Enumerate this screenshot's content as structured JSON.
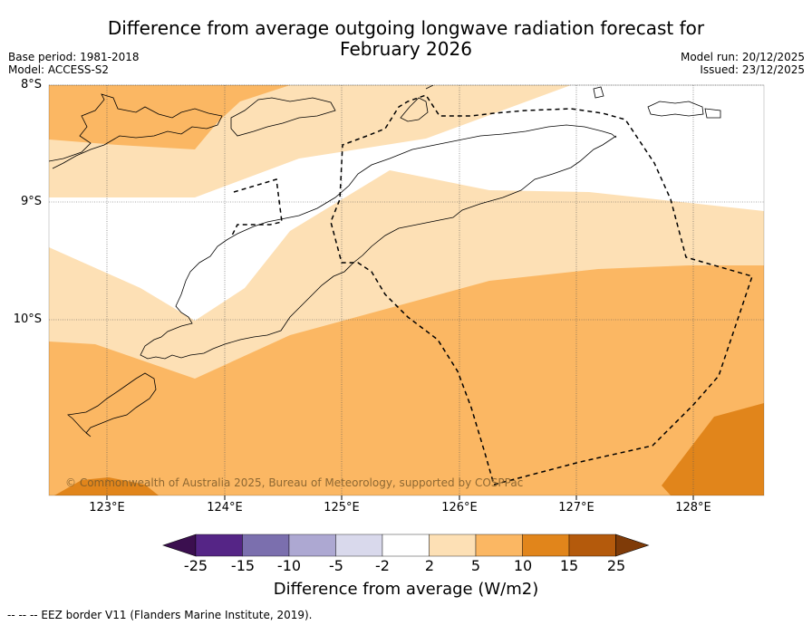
{
  "title": {
    "line1": "Difference from average outgoing longwave radiation forecast for",
    "line2": "February 2026"
  },
  "meta_left": {
    "base_period": "Base period: 1981-2018",
    "model": "Model: ACCESS-S2"
  },
  "meta_right": {
    "model_run": "Model run: 20/12/2025",
    "issued": "Issued: 23/12/2025"
  },
  "axes": {
    "lat_labels": [
      "8°S",
      "9°S",
      "10°S"
    ],
    "lon_labels": [
      "123°E",
      "124°E",
      "125°E",
      "126°E",
      "127°E",
      "128°E"
    ]
  },
  "copyright": "© Commonwealth of Australia 2025, Bureau of Meteorology, supported by COSPPac",
  "colorbar": {
    "ticks": [
      "-25",
      "-15",
      "-10",
      "-5",
      "-2",
      "2",
      "5",
      "10",
      "15",
      "25"
    ],
    "colors": [
      "#3b0f4f",
      "#552586",
      "#7b6fae",
      "#ada8d2",
      "#d9d9ec",
      "#ffffff",
      "#fde0b5",
      "#fbb763",
      "#e1851b",
      "#b45a0c",
      "#7f3b08"
    ],
    "label": "Difference from average (W/m2)"
  },
  "legend_note": "--  --  -- EEZ border V11 (Flanders Marine Institute, 2019).",
  "map_colors": {
    "light": "#fde0b5",
    "medium": "#fbb763",
    "dark": "#e1851b"
  }
}
